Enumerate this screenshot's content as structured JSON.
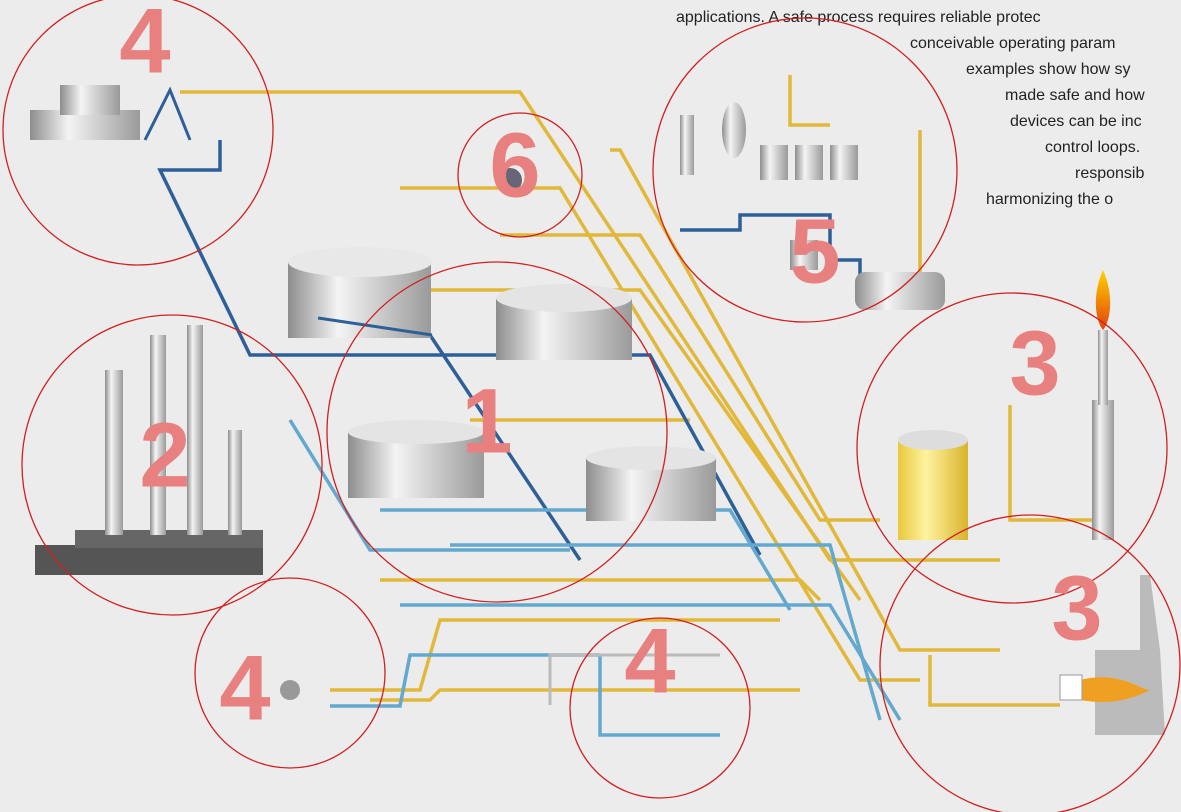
{
  "intro_text": [
    "applications. A safe process requires reliable protec",
    "conceivable operating param",
    "examples show how sy",
    "made safe and how",
    "devices can be inc",
    "control loops.",
    "responsib",
    "harmonizing the o"
  ],
  "zones": [
    {
      "label": "4"
    },
    {
      "label": "6"
    },
    {
      "label": "5"
    },
    {
      "label": "2"
    },
    {
      "label": "1"
    },
    {
      "label": "3"
    },
    {
      "label": "3"
    },
    {
      "label": "4"
    },
    {
      "label": "4"
    }
  ]
}
